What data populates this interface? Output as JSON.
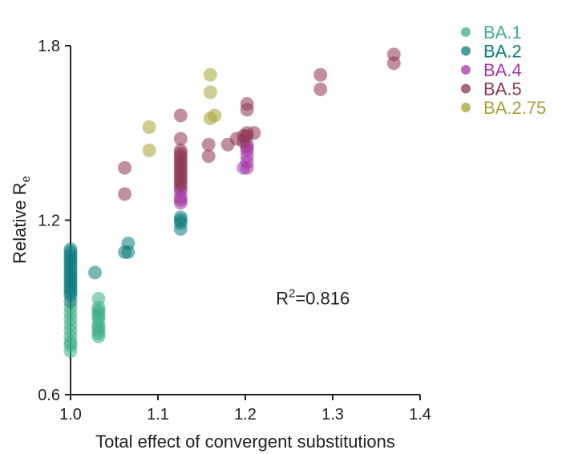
{
  "chart_data": {
    "type": "scatter",
    "title": "",
    "xlabel": "Total effect of convergent substitutions",
    "ylabel": {
      "main": "Relative R",
      "subscript": "e"
    },
    "xlim": [
      1.0,
      1.4
    ],
    "ylim": [
      0.6,
      1.8
    ],
    "xticks": [
      {
        "value": 1.0,
        "label": "1.0"
      },
      {
        "value": 1.1,
        "label": "1.1"
      },
      {
        "value": 1.2,
        "label": "1.2"
      },
      {
        "value": 1.3,
        "label": "1.3"
      },
      {
        "value": 1.4,
        "label": "1.4"
      }
    ],
    "yticks": [
      {
        "value": 0.6,
        "label": "0.6"
      },
      {
        "value": 1.2,
        "label": "1.2"
      },
      {
        "value": 1.8,
        "label": "1.8"
      }
    ],
    "grid": false,
    "legend_position": "top-right",
    "annotation": {
      "prefix": "R",
      "superscript": "2",
      "suffix": "=0.816",
      "x": 1.29,
      "y": 0.9
    },
    "series": [
      {
        "name": "BA.1",
        "color": "#3daf86",
        "points": [
          [
            1.0,
            0.75
          ],
          [
            1.0,
            0.77
          ],
          [
            1.0,
            0.78
          ],
          [
            1.0,
            0.8
          ],
          [
            1.0,
            0.82
          ],
          [
            1.0,
            0.84
          ],
          [
            1.0,
            0.86
          ],
          [
            1.0,
            0.88
          ],
          [
            1.0,
            0.9
          ],
          [
            1.032,
            0.8
          ],
          [
            1.032,
            0.81
          ],
          [
            1.032,
            0.82
          ],
          [
            1.032,
            0.83
          ],
          [
            1.032,
            0.84
          ],
          [
            1.032,
            0.86
          ],
          [
            1.032,
            0.87
          ],
          [
            1.032,
            0.88
          ],
          [
            1.032,
            0.89
          ],
          [
            1.032,
            0.9
          ],
          [
            1.032,
            0.93
          ]
        ]
      },
      {
        "name": "BA.2",
        "color": "#0e7b7c",
        "points": [
          [
            1.0,
            0.92
          ],
          [
            1.0,
            0.94
          ],
          [
            1.0,
            0.95
          ],
          [
            1.0,
            0.96
          ],
          [
            1.0,
            0.97
          ],
          [
            1.0,
            0.98
          ],
          [
            1.0,
            0.99
          ],
          [
            1.0,
            1.0
          ],
          [
            1.0,
            1.01
          ],
          [
            1.0,
            1.02
          ],
          [
            1.0,
            1.03
          ],
          [
            1.0,
            1.04
          ],
          [
            1.0,
            1.05
          ],
          [
            1.0,
            1.06
          ],
          [
            1.0,
            1.07
          ],
          [
            1.0,
            1.08
          ],
          [
            1.0,
            1.09
          ],
          [
            1.0,
            1.1
          ],
          [
            1.028,
            1.02
          ],
          [
            1.062,
            1.09
          ],
          [
            1.066,
            1.09
          ],
          [
            1.066,
            1.12
          ],
          [
            1.126,
            1.17
          ],
          [
            1.126,
            1.19
          ],
          [
            1.126,
            1.2
          ],
          [
            1.126,
            1.21
          ]
        ]
      },
      {
        "name": "BA.4",
        "color": "#a237a8",
        "points": [
          [
            1.126,
            1.26
          ],
          [
            1.126,
            1.27
          ],
          [
            1.126,
            1.28
          ],
          [
            1.126,
            1.3
          ],
          [
            1.126,
            1.31
          ],
          [
            1.198,
            1.38
          ],
          [
            1.202,
            1.38
          ],
          [
            1.202,
            1.4
          ],
          [
            1.202,
            1.42
          ],
          [
            1.202,
            1.44
          ],
          [
            1.202,
            1.45
          ],
          [
            1.202,
            1.46
          ]
        ]
      },
      {
        "name": "BA.5",
        "color": "#8e3552",
        "points": [
          [
            1.062,
            1.29
          ],
          [
            1.062,
            1.38
          ],
          [
            1.126,
            1.32
          ],
          [
            1.126,
            1.33
          ],
          [
            1.126,
            1.34
          ],
          [
            1.126,
            1.35
          ],
          [
            1.126,
            1.36
          ],
          [
            1.126,
            1.37
          ],
          [
            1.126,
            1.38
          ],
          [
            1.126,
            1.39
          ],
          [
            1.126,
            1.4
          ],
          [
            1.126,
            1.41
          ],
          [
            1.126,
            1.42
          ],
          [
            1.126,
            1.43
          ],
          [
            1.126,
            1.44
          ],
          [
            1.126,
            1.48
          ],
          [
            1.126,
            1.56
          ],
          [
            1.158,
            1.42
          ],
          [
            1.158,
            1.46
          ],
          [
            1.18,
            1.46
          ],
          [
            1.19,
            1.48
          ],
          [
            1.198,
            1.47
          ],
          [
            1.198,
            1.49
          ],
          [
            1.202,
            1.49
          ],
          [
            1.202,
            1.5
          ],
          [
            1.202,
            1.58
          ],
          [
            1.202,
            1.6
          ],
          [
            1.21,
            1.5
          ],
          [
            1.286,
            1.65
          ],
          [
            1.286,
            1.7
          ],
          [
            1.37,
            1.74
          ],
          [
            1.37,
            1.77
          ]
        ]
      },
      {
        "name": "BA.2.75",
        "color": "#a8a334",
        "points": [
          [
            1.09,
            1.44
          ],
          [
            1.09,
            1.52
          ],
          [
            1.16,
            1.55
          ],
          [
            1.16,
            1.64
          ],
          [
            1.16,
            1.7
          ],
          [
            1.165,
            1.56
          ]
        ]
      }
    ]
  }
}
